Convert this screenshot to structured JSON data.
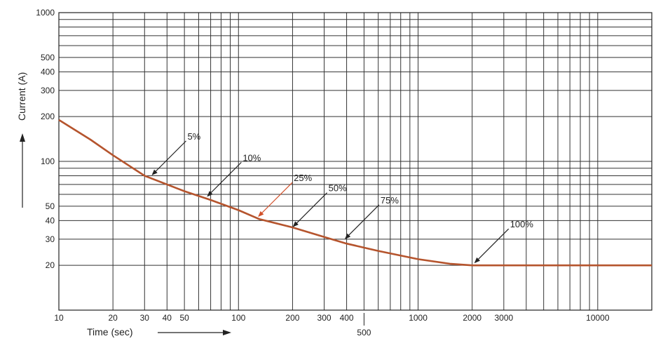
{
  "chart_data": {
    "type": "line",
    "xlabel": "Time (sec)",
    "ylabel": "Current (A)",
    "x_scale": "log",
    "y_scale": "log",
    "xlim": [
      10,
      20000
    ],
    "ylim": [
      10,
      1000
    ],
    "grid": true,
    "x_tick_labels": [
      "10",
      "20",
      "30",
      "40",
      "50",
      "100",
      "200",
      "300",
      "400",
      "500",
      "1000",
      "2000",
      "3000",
      "10000"
    ],
    "y_tick_labels": [
      "20",
      "30",
      "40",
      "50",
      "100",
      "200",
      "300",
      "400",
      "500",
      "1000"
    ],
    "series": [
      {
        "x": [
          10,
          15,
          20,
          30,
          50,
          70,
          100,
          130,
          200,
          300,
          400,
          600,
          1000,
          1500,
          2000,
          3000,
          5000,
          10000,
          20000
        ],
        "y": [
          190,
          140,
          110,
          80,
          63,
          55,
          47,
          41,
          36,
          31,
          28,
          25,
          22,
          20.5,
          20,
          20,
          20,
          20,
          20
        ]
      }
    ],
    "annotations": [
      {
        "label": "5%",
        "x": 32,
        "y": 78
      },
      {
        "label": "10%",
        "x": 65,
        "y": 56
      },
      {
        "label": "25%",
        "x": 125,
        "y": 41
      },
      {
        "label": "50%",
        "x": 195,
        "y": 35
      },
      {
        "label": "75%",
        "x": 380,
        "y": 29
      },
      {
        "label": "100%",
        "x": 2000,
        "y": 20
      }
    ],
    "colors": {
      "curve": "#b5542d",
      "grid": "#333333",
      "highlight_arrow": "#d2502a"
    }
  }
}
